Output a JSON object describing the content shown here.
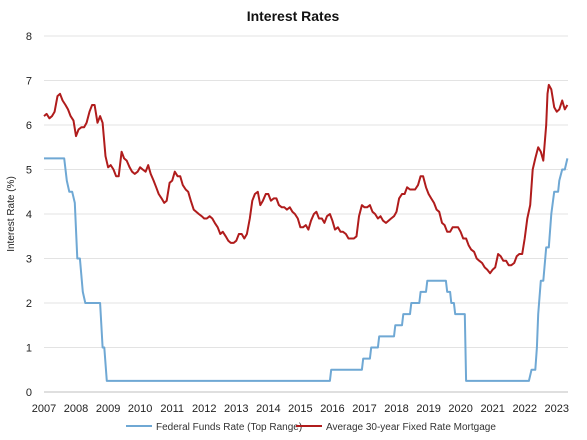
{
  "chart_data": {
    "type": "line",
    "title": "Interest Rates",
    "xlabel": "",
    "ylabel": "Interest Rate (%)",
    "xlim": [
      2007.0,
      2023.35
    ],
    "ylim": [
      0,
      8
    ],
    "grid": true,
    "legend_position": "bottom",
    "x_ticks": [
      "2007",
      "2008",
      "2009",
      "2010",
      "2011",
      "2012",
      "2013",
      "2014",
      "2015",
      "2016",
      "2017",
      "2018",
      "2019",
      "2020",
      "2021",
      "2022",
      "2023"
    ],
    "y_ticks": [
      "0",
      "1",
      "2",
      "3",
      "4",
      "5",
      "6",
      "7",
      "8"
    ],
    "series": [
      {
        "name": "Federal Funds Rate (Top Range)",
        "color": "#6fa8d4",
        "points": [
          [
            2007.0,
            5.25
          ],
          [
            2007.63,
            5.25
          ],
          [
            2007.71,
            4.75
          ],
          [
            2007.79,
            4.5
          ],
          [
            2007.88,
            4.5
          ],
          [
            2007.96,
            4.25
          ],
          [
            2008.04,
            3.0
          ],
          [
            2008.12,
            3.0
          ],
          [
            2008.21,
            2.25
          ],
          [
            2008.29,
            2.0
          ],
          [
            2008.75,
            2.0
          ],
          [
            2008.83,
            1.0
          ],
          [
            2008.88,
            1.0
          ],
          [
            2008.96,
            0.25
          ],
          [
            2015.92,
            0.25
          ],
          [
            2015.96,
            0.5
          ],
          [
            2016.92,
            0.5
          ],
          [
            2016.96,
            0.75
          ],
          [
            2017.17,
            0.75
          ],
          [
            2017.21,
            1.0
          ],
          [
            2017.42,
            1.0
          ],
          [
            2017.46,
            1.25
          ],
          [
            2017.92,
            1.25
          ],
          [
            2017.96,
            1.5
          ],
          [
            2018.17,
            1.5
          ],
          [
            2018.21,
            1.75
          ],
          [
            2018.42,
            1.75
          ],
          [
            2018.46,
            2.0
          ],
          [
            2018.71,
            2.0
          ],
          [
            2018.75,
            2.25
          ],
          [
            2018.92,
            2.25
          ],
          [
            2018.96,
            2.5
          ],
          [
            2019.54,
            2.5
          ],
          [
            2019.58,
            2.25
          ],
          [
            2019.67,
            2.25
          ],
          [
            2019.71,
            2.0
          ],
          [
            2019.79,
            2.0
          ],
          [
            2019.83,
            1.75
          ],
          [
            2020.13,
            1.75
          ],
          [
            2020.17,
            0.25
          ],
          [
            2022.13,
            0.25
          ],
          [
            2022.21,
            0.5
          ],
          [
            2022.33,
            0.5
          ],
          [
            2022.38,
            1.0
          ],
          [
            2022.42,
            1.75
          ],
          [
            2022.5,
            2.5
          ],
          [
            2022.58,
            2.5
          ],
          [
            2022.67,
            3.25
          ],
          [
            2022.75,
            3.25
          ],
          [
            2022.83,
            4.0
          ],
          [
            2022.92,
            4.5
          ],
          [
            2023.04,
            4.5
          ],
          [
            2023.08,
            4.75
          ],
          [
            2023.17,
            5.0
          ],
          [
            2023.25,
            5.0
          ],
          [
            2023.33,
            5.25
          ]
        ]
      },
      {
        "name": "Average 30-year Fixed Rate Mortgage",
        "color": "#b01c1c",
        "points": [
          [
            2007.0,
            6.2
          ],
          [
            2007.08,
            6.25
          ],
          [
            2007.17,
            6.15
          ],
          [
            2007.25,
            6.2
          ],
          [
            2007.33,
            6.3
          ],
          [
            2007.42,
            6.65
          ],
          [
            2007.5,
            6.7
          ],
          [
            2007.58,
            6.55
          ],
          [
            2007.67,
            6.45
          ],
          [
            2007.75,
            6.35
          ],
          [
            2007.83,
            6.2
          ],
          [
            2007.92,
            6.1
          ],
          [
            2008.0,
            5.75
          ],
          [
            2008.08,
            5.9
          ],
          [
            2008.17,
            5.95
          ],
          [
            2008.25,
            5.95
          ],
          [
            2008.33,
            6.05
          ],
          [
            2008.42,
            6.3
          ],
          [
            2008.5,
            6.45
          ],
          [
            2008.58,
            6.45
          ],
          [
            2008.67,
            6.05
          ],
          [
            2008.75,
            6.2
          ],
          [
            2008.83,
            6.05
          ],
          [
            2008.92,
            5.3
          ],
          [
            2009.0,
            5.05
          ],
          [
            2009.08,
            5.1
          ],
          [
            2009.17,
            5.0
          ],
          [
            2009.25,
            4.85
          ],
          [
            2009.33,
            4.85
          ],
          [
            2009.42,
            5.4
          ],
          [
            2009.5,
            5.25
          ],
          [
            2009.58,
            5.2
          ],
          [
            2009.67,
            5.05
          ],
          [
            2009.75,
            4.95
          ],
          [
            2009.83,
            4.9
          ],
          [
            2009.92,
            4.95
          ],
          [
            2010.0,
            5.05
          ],
          [
            2010.08,
            5.0
          ],
          [
            2010.17,
            4.95
          ],
          [
            2010.25,
            5.1
          ],
          [
            2010.33,
            4.9
          ],
          [
            2010.42,
            4.75
          ],
          [
            2010.5,
            4.6
          ],
          [
            2010.58,
            4.45
          ],
          [
            2010.67,
            4.35
          ],
          [
            2010.75,
            4.25
          ],
          [
            2010.83,
            4.3
          ],
          [
            2010.92,
            4.7
          ],
          [
            2011.0,
            4.75
          ],
          [
            2011.08,
            4.95
          ],
          [
            2011.17,
            4.85
          ],
          [
            2011.25,
            4.85
          ],
          [
            2011.33,
            4.65
          ],
          [
            2011.42,
            4.55
          ],
          [
            2011.5,
            4.5
          ],
          [
            2011.58,
            4.3
          ],
          [
            2011.67,
            4.1
          ],
          [
            2011.75,
            4.05
          ],
          [
            2011.83,
            4.0
          ],
          [
            2011.92,
            3.95
          ],
          [
            2012.0,
            3.9
          ],
          [
            2012.08,
            3.9
          ],
          [
            2012.17,
            3.95
          ],
          [
            2012.25,
            3.9
          ],
          [
            2012.33,
            3.8
          ],
          [
            2012.42,
            3.7
          ],
          [
            2012.5,
            3.55
          ],
          [
            2012.58,
            3.6
          ],
          [
            2012.67,
            3.5
          ],
          [
            2012.75,
            3.4
          ],
          [
            2012.83,
            3.35
          ],
          [
            2012.92,
            3.35
          ],
          [
            2013.0,
            3.4
          ],
          [
            2013.08,
            3.55
          ],
          [
            2013.17,
            3.55
          ],
          [
            2013.25,
            3.45
          ],
          [
            2013.33,
            3.55
          ],
          [
            2013.42,
            3.9
          ],
          [
            2013.5,
            4.3
          ],
          [
            2013.58,
            4.45
          ],
          [
            2013.67,
            4.5
          ],
          [
            2013.75,
            4.2
          ],
          [
            2013.83,
            4.3
          ],
          [
            2013.92,
            4.45
          ],
          [
            2014.0,
            4.45
          ],
          [
            2014.08,
            4.3
          ],
          [
            2014.17,
            4.35
          ],
          [
            2014.25,
            4.35
          ],
          [
            2014.33,
            4.2
          ],
          [
            2014.42,
            4.15
          ],
          [
            2014.5,
            4.15
          ],
          [
            2014.58,
            4.1
          ],
          [
            2014.67,
            4.15
          ],
          [
            2014.75,
            4.05
          ],
          [
            2014.83,
            4.0
          ],
          [
            2014.92,
            3.9
          ],
          [
            2015.0,
            3.7
          ],
          [
            2015.08,
            3.7
          ],
          [
            2015.17,
            3.75
          ],
          [
            2015.25,
            3.65
          ],
          [
            2015.33,
            3.85
          ],
          [
            2015.42,
            4.0
          ],
          [
            2015.5,
            4.05
          ],
          [
            2015.58,
            3.9
          ],
          [
            2015.67,
            3.9
          ],
          [
            2015.75,
            3.8
          ],
          [
            2015.83,
            3.95
          ],
          [
            2015.92,
            4.0
          ],
          [
            2016.0,
            3.85
          ],
          [
            2016.08,
            3.65
          ],
          [
            2016.17,
            3.7
          ],
          [
            2016.25,
            3.6
          ],
          [
            2016.33,
            3.6
          ],
          [
            2016.42,
            3.55
          ],
          [
            2016.5,
            3.45
          ],
          [
            2016.58,
            3.45
          ],
          [
            2016.67,
            3.45
          ],
          [
            2016.75,
            3.5
          ],
          [
            2016.83,
            3.95
          ],
          [
            2016.92,
            4.2
          ],
          [
            2017.0,
            4.15
          ],
          [
            2017.08,
            4.15
          ],
          [
            2017.17,
            4.2
          ],
          [
            2017.25,
            4.05
          ],
          [
            2017.33,
            4.0
          ],
          [
            2017.42,
            3.9
          ],
          [
            2017.5,
            3.95
          ],
          [
            2017.58,
            3.85
          ],
          [
            2017.67,
            3.8
          ],
          [
            2017.75,
            3.85
          ],
          [
            2017.83,
            3.9
          ],
          [
            2017.92,
            3.95
          ],
          [
            2018.0,
            4.05
          ],
          [
            2018.08,
            4.35
          ],
          [
            2018.17,
            4.45
          ],
          [
            2018.25,
            4.45
          ],
          [
            2018.33,
            4.6
          ],
          [
            2018.42,
            4.55
          ],
          [
            2018.5,
            4.55
          ],
          [
            2018.58,
            4.55
          ],
          [
            2018.67,
            4.65
          ],
          [
            2018.75,
            4.85
          ],
          [
            2018.83,
            4.85
          ],
          [
            2018.92,
            4.6
          ],
          [
            2019.0,
            4.45
          ],
          [
            2019.08,
            4.35
          ],
          [
            2019.17,
            4.25
          ],
          [
            2019.25,
            4.1
          ],
          [
            2019.33,
            4.05
          ],
          [
            2019.42,
            3.8
          ],
          [
            2019.5,
            3.75
          ],
          [
            2019.58,
            3.6
          ],
          [
            2019.67,
            3.6
          ],
          [
            2019.75,
            3.7
          ],
          [
            2019.83,
            3.7
          ],
          [
            2019.92,
            3.7
          ],
          [
            2020.0,
            3.6
          ],
          [
            2020.08,
            3.45
          ],
          [
            2020.17,
            3.45
          ],
          [
            2020.25,
            3.3
          ],
          [
            2020.33,
            3.2
          ],
          [
            2020.42,
            3.15
          ],
          [
            2020.5,
            3.0
          ],
          [
            2020.58,
            2.95
          ],
          [
            2020.67,
            2.9
          ],
          [
            2020.75,
            2.8
          ],
          [
            2020.83,
            2.75
          ],
          [
            2020.92,
            2.67
          ],
          [
            2021.0,
            2.75
          ],
          [
            2021.08,
            2.8
          ],
          [
            2021.17,
            3.1
          ],
          [
            2021.25,
            3.05
          ],
          [
            2021.33,
            2.95
          ],
          [
            2021.42,
            2.95
          ],
          [
            2021.5,
            2.85
          ],
          [
            2021.58,
            2.85
          ],
          [
            2021.67,
            2.9
          ],
          [
            2021.75,
            3.05
          ],
          [
            2021.83,
            3.1
          ],
          [
            2021.92,
            3.1
          ],
          [
            2022.0,
            3.45
          ],
          [
            2022.08,
            3.9
          ],
          [
            2022.17,
            4.2
          ],
          [
            2022.25,
            5.0
          ],
          [
            2022.33,
            5.25
          ],
          [
            2022.42,
            5.5
          ],
          [
            2022.5,
            5.4
          ],
          [
            2022.58,
            5.2
          ],
          [
            2022.67,
            6.0
          ],
          [
            2022.71,
            6.7
          ],
          [
            2022.75,
            6.9
          ],
          [
            2022.83,
            6.8
          ],
          [
            2022.92,
            6.4
          ],
          [
            2023.0,
            6.3
          ],
          [
            2023.08,
            6.35
          ],
          [
            2023.17,
            6.55
          ],
          [
            2023.25,
            6.35
          ],
          [
            2023.33,
            6.45
          ]
        ]
      }
    ]
  }
}
